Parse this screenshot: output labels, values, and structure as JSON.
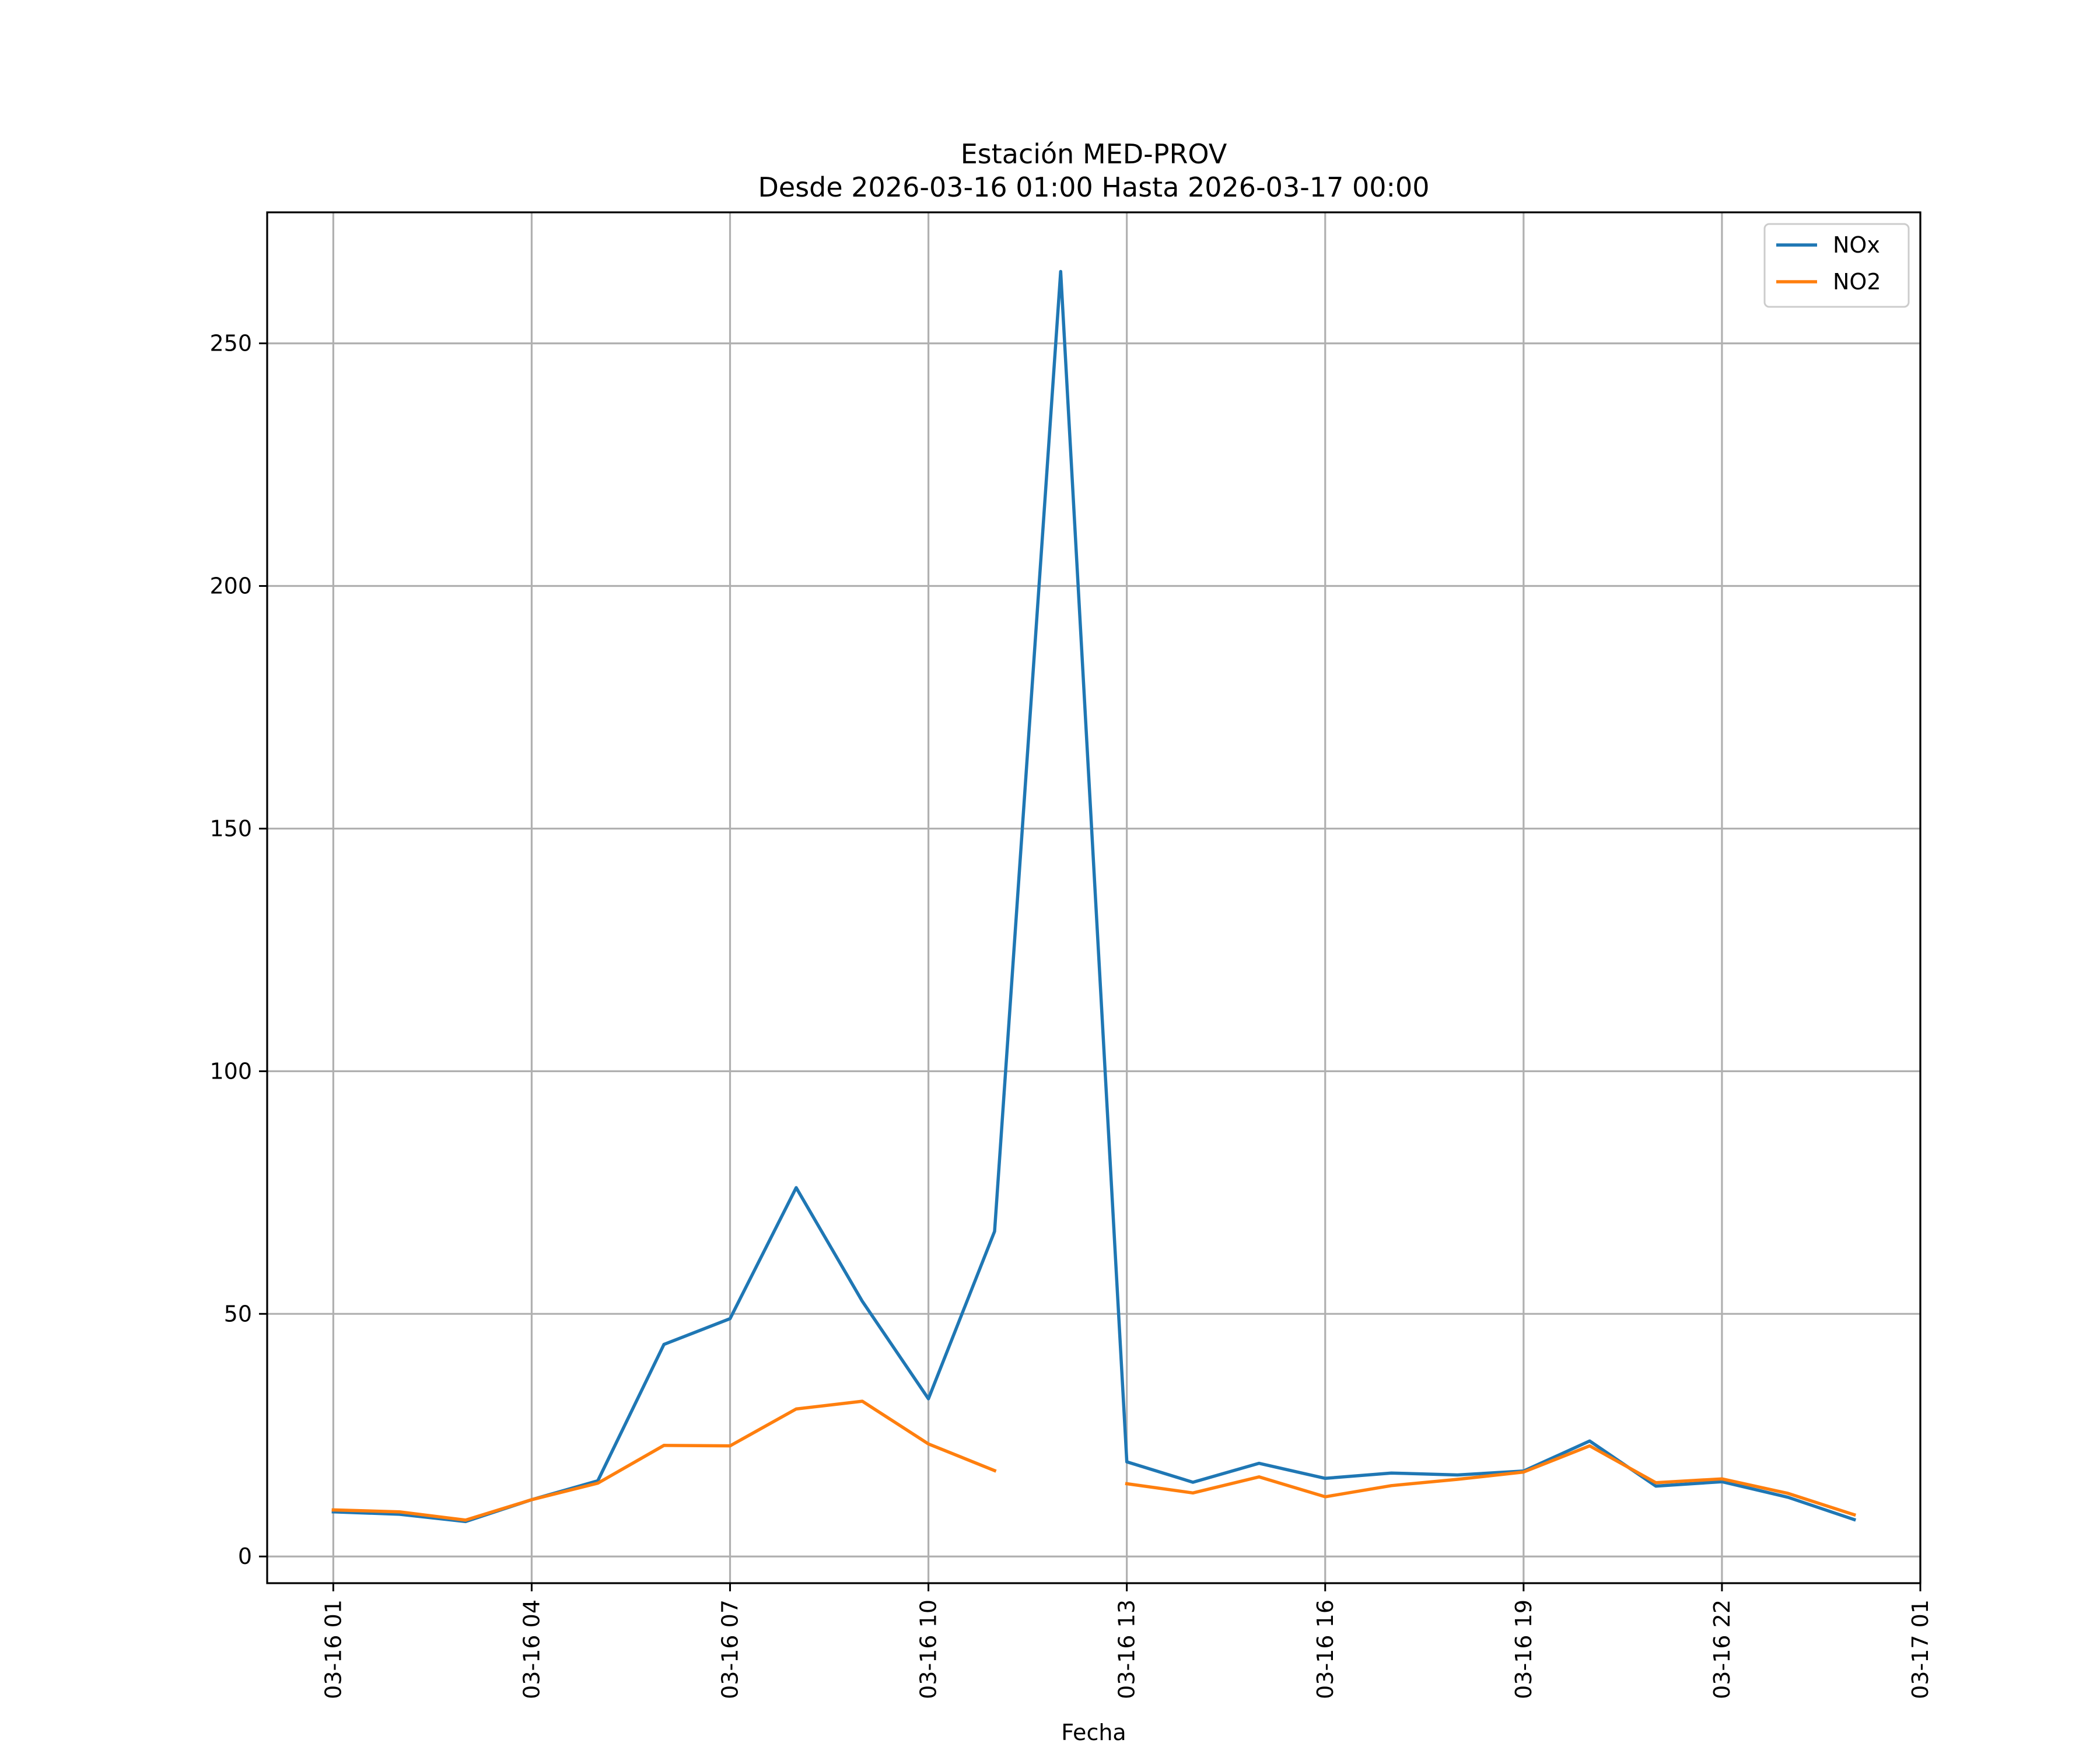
{
  "chart_data": {
    "type": "line",
    "title": "Estación MED-PROV",
    "subtitle": "Desde 2026-03-16 01:00 Hasta 2026-03-17 00:00",
    "xlabel": "Fecha",
    "ylabel": "",
    "x_ticks": [
      "03-16 01",
      "03-16 04",
      "03-16 07",
      "03-16 10",
      "03-16 13",
      "03-16 16",
      "03-16 19",
      "03-16 22",
      "03-17 01"
    ],
    "x_range": [
      "03-16 00:00",
      "03-17 01:00"
    ],
    "y_ticks": [
      0,
      50,
      100,
      150,
      200,
      250
    ],
    "ylim": [
      -5.5,
      277
    ],
    "grid": true,
    "legend_position": "top-right",
    "x": [
      "03-16 01:00",
      "03-16 02:00",
      "03-16 03:00",
      "03-16 04:00",
      "03-16 05:00",
      "03-16 06:00",
      "03-16 07:00",
      "03-16 08:00",
      "03-16 09:00",
      "03-16 10:00",
      "03-16 11:00",
      "03-16 12:00",
      "03-16 13:00",
      "03-16 14:00",
      "03-16 15:00",
      "03-16 16:00",
      "03-16 17:00",
      "03-16 18:00",
      "03-16 19:00",
      "03-16 20:00",
      "03-16 21:00",
      "03-16 22:00",
      "03-16 23:00",
      "03-17 00:00"
    ],
    "series": [
      {
        "name": "NOx",
        "color": "#1f77b4",
        "values": [
          9.2,
          8.7,
          7.2,
          11.7,
          15.6,
          43.7,
          49,
          76,
          52.6,
          32.5,
          67,
          264.8,
          19.5,
          15.3,
          19.2,
          16.1,
          17.2,
          16.8,
          17.6,
          23.8,
          14.5,
          15.4,
          12.2,
          7.6
        ]
      },
      {
        "name": "NO2",
        "color": "#ff7f0e",
        "values": [
          9.6,
          9.2,
          7.5,
          11.7,
          15.1,
          22.9,
          22.8,
          30.4,
          32,
          23.2,
          17.7,
          null,
          15,
          13.1,
          16.4,
          12.3,
          14.6,
          15.9,
          17.4,
          22.8,
          15.2,
          16,
          13,
          8.6
        ]
      }
    ]
  }
}
